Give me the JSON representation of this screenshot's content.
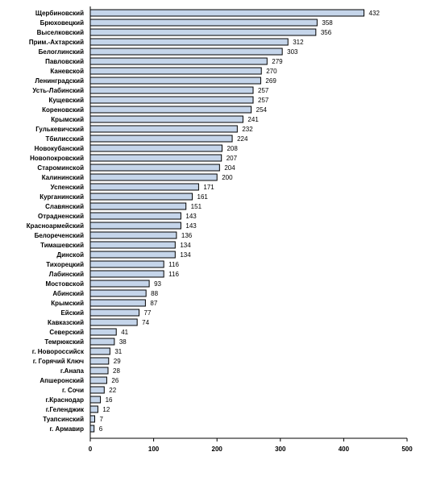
{
  "chart_data": {
    "type": "bar",
    "orientation": "horizontal",
    "categories": [
      "Щербиновский",
      "Брюховецкий",
      "Выселковский",
      "Прим.-Ахтарский",
      "Белоглинский",
      "Павловский",
      "Каневской",
      "Ленинградский",
      "Усть-Лабинский",
      "Кущевский",
      "Кореновский",
      "Крымский",
      "Гулькевичский",
      "Тбилисский",
      "Новокубанский",
      "Новопокровский",
      "Староминской",
      "Калининский",
      "Успенский",
      "Курганинский",
      "Славянский",
      "Отрадненский",
      "Красноармейский",
      "Белореченский",
      "Тимашевский",
      "Динской",
      "Тихорецкий",
      "Лабинский",
      "Мостовской",
      "Абинский",
      "Крымский",
      "Ейский",
      "Кавказский",
      "Северский",
      "Темрюкский",
      "г. Новороссийск",
      "г. Горячий Ключ",
      "г.Анапа",
      "Апшеронский",
      "г. Сочи",
      "г.Краснодар",
      "г.Геленджик",
      "Туапсинский",
      "г. Армавир"
    ],
    "values": [
      432,
      358,
      356,
      312,
      303,
      279,
      270,
      269,
      257,
      257,
      254,
      241,
      232,
      224,
      208,
      207,
      204,
      200,
      171,
      161,
      151,
      143,
      143,
      136,
      134,
      134,
      116,
      116,
      93,
      88,
      87,
      77,
      74,
      41,
      38,
      31,
      29,
      28,
      26,
      22,
      16,
      12,
      7,
      6
    ],
    "xlim": [
      0,
      500
    ],
    "xticks": [
      0,
      100,
      200,
      300,
      400,
      500
    ],
    "bar_color": "#c5d5ea",
    "bar_edge_color": "#000000",
    "grid": false
  }
}
